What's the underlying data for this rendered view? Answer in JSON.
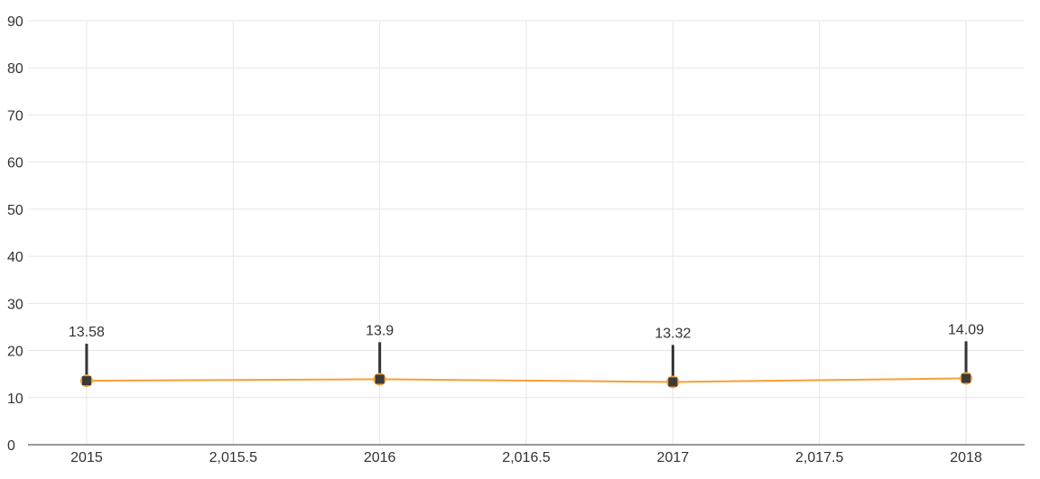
{
  "chart_data": {
    "type": "line",
    "title": "",
    "xlabel": "",
    "ylabel": "",
    "x": [
      2015,
      2016,
      2017,
      2018
    ],
    "series": [
      {
        "values": [
          13.58,
          13.9,
          13.32,
          14.09
        ],
        "labels": [
          "13.58",
          "13.9",
          "13.32",
          "14.09"
        ]
      }
    ],
    "xlim": [
      2014.8,
      2018.2
    ],
    "ylim": [
      0,
      90
    ],
    "x_tick_values": [
      2015,
      2015.5,
      2016,
      2016.5,
      2017,
      2017.5,
      2018
    ],
    "x_tick_labels": [
      "2015",
      "2,015.5",
      "2016",
      "2,016.5",
      "2017",
      "2,017.5",
      "2018"
    ],
    "y_tick_values": [
      0,
      10,
      20,
      30,
      40,
      50,
      60,
      70,
      80,
      90
    ],
    "y_tick_labels": [
      "0",
      "10",
      "20",
      "30",
      "40",
      "50",
      "60",
      "70",
      "80",
      "90"
    ],
    "grid": true,
    "legend": "none",
    "colors": {
      "line": "#F7A035",
      "marker_fill": "#3A3A3A",
      "marker_stroke": "#F7A035",
      "leader": "#333333",
      "grid": "#E6E6E6",
      "axis": "#333333",
      "text": "#333333"
    }
  }
}
